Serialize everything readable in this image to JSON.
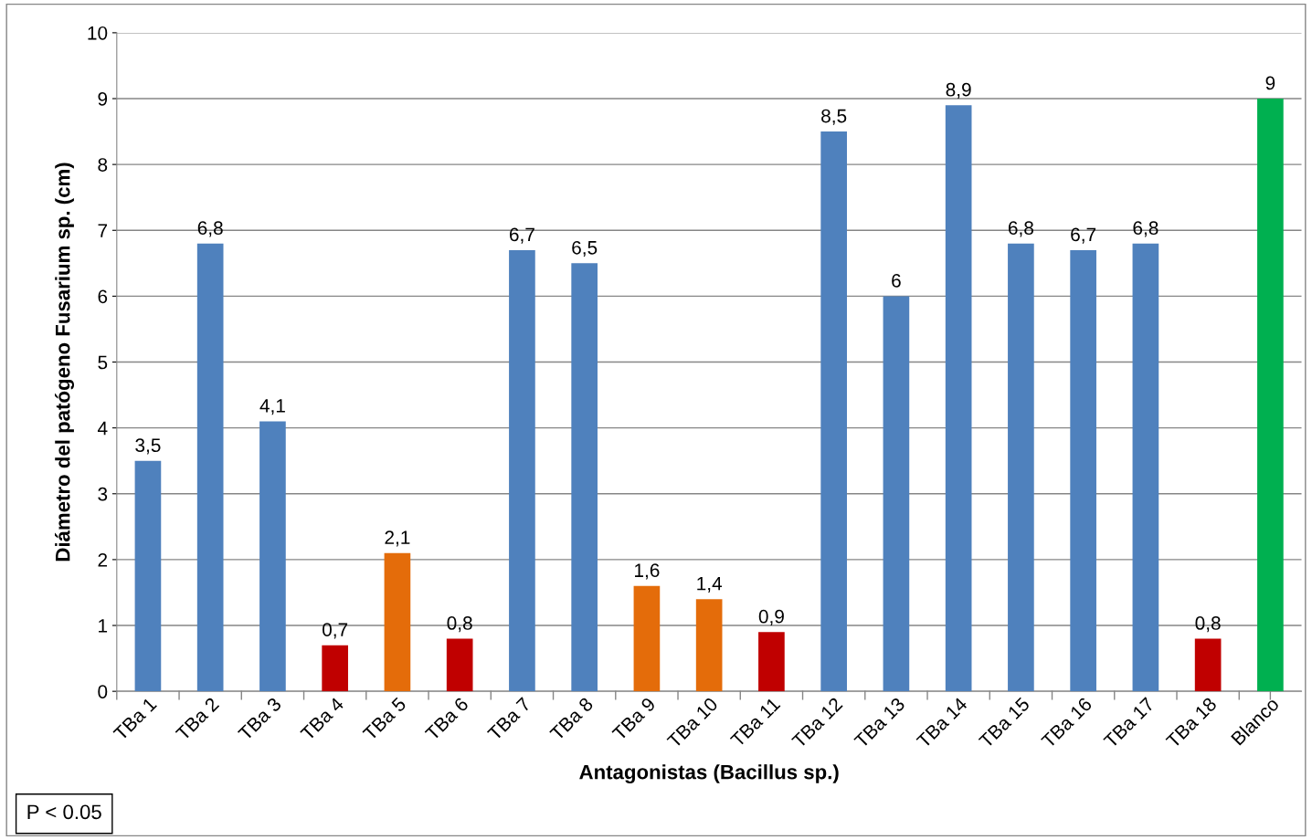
{
  "chart_data": {
    "type": "bar",
    "xlabel": "Antagonistas (Bacillus sp.)",
    "ylabel": "Diámetro del patógeno Fusarium sp. (cm)",
    "categories": [
      "TBa 1",
      "TBa 2",
      "TBa 3",
      "TBa 4",
      "TBa 5",
      "TBa 6",
      "TBa 7",
      "TBa 8",
      "TBa 9",
      "TBa 10",
      "TBa 11",
      "TBa 12",
      "TBa 13",
      "TBa 14",
      "TBa 15",
      "TBa 16",
      "TBa 17",
      "TBa 18",
      "Blanco"
    ],
    "values": [
      3.5,
      6.8,
      4.1,
      0.7,
      2.1,
      0.8,
      6.7,
      6.5,
      1.6,
      1.4,
      0.9,
      8.5,
      6,
      8.9,
      6.8,
      6.7,
      6.8,
      0.8,
      9
    ],
    "value_labels": [
      "3,5",
      "6,8",
      "4,1",
      "0,7",
      "2,1",
      "0,8",
      "6,7",
      "6,5",
      "1,6",
      "1,4",
      "0,9",
      "8,5",
      "6",
      "8,9",
      "6,8",
      "6,7",
      "6,8",
      "0,8",
      "9"
    ],
    "colors": [
      "#4f81bd",
      "#4f81bd",
      "#4f81bd",
      "#c00000",
      "#e46c0a",
      "#c00000",
      "#4f81bd",
      "#4f81bd",
      "#e46c0a",
      "#e46c0a",
      "#c00000",
      "#4f81bd",
      "#4f81bd",
      "#4f81bd",
      "#4f81bd",
      "#4f81bd",
      "#4f81bd",
      "#c00000",
      "#00b050"
    ],
    "ylim": [
      0,
      10
    ],
    "yticks": [
      0,
      1,
      2,
      3,
      4,
      5,
      6,
      7,
      8,
      9,
      10
    ],
    "grid": "y",
    "annotations": [
      "P < 0.05"
    ]
  }
}
